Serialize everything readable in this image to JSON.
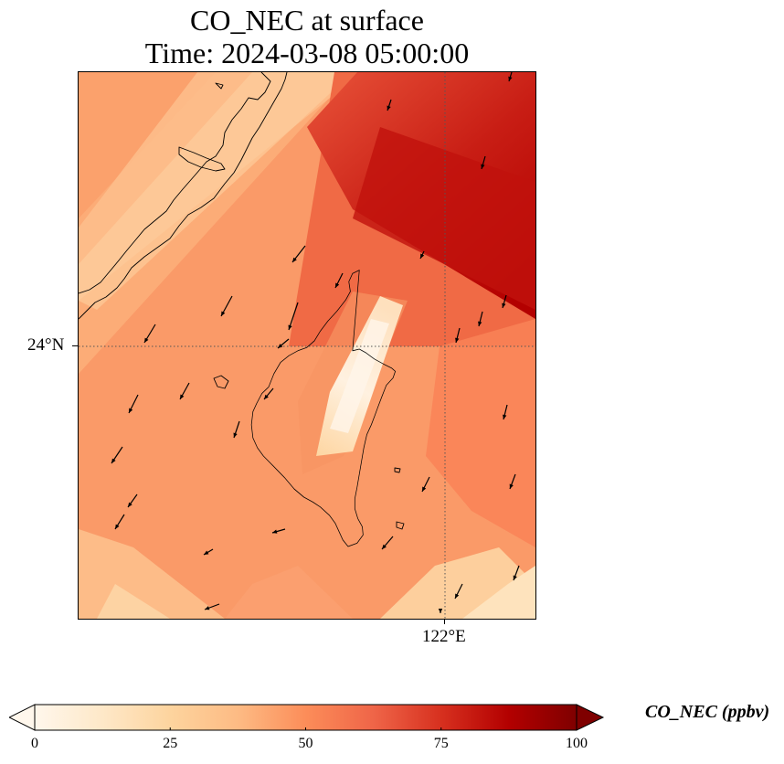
{
  "title": {
    "line1": "CO_NEC at surface",
    "line2": "Time: 2024-03-08 05:00:00"
  },
  "map": {
    "latitude_label": "24°N",
    "longitude_label": "122°E",
    "gridline_style": "dotted"
  },
  "colorbar": {
    "label": "CO_NEC (ppbv)",
    "ticks": [
      "0",
      "25",
      "50",
      "75",
      "100"
    ],
    "min": 0,
    "max": 100,
    "colormap": "OrRd",
    "colors": [
      "#fff7ec",
      "#fee8c8",
      "#fdd49e",
      "#fdbb84",
      "#fc8d59",
      "#ef6548",
      "#d7301f",
      "#b30000",
      "#7f0000"
    ],
    "extend": "both"
  },
  "colors": {
    "coastline": "#000000",
    "wind_arrow": "#000000"
  }
}
